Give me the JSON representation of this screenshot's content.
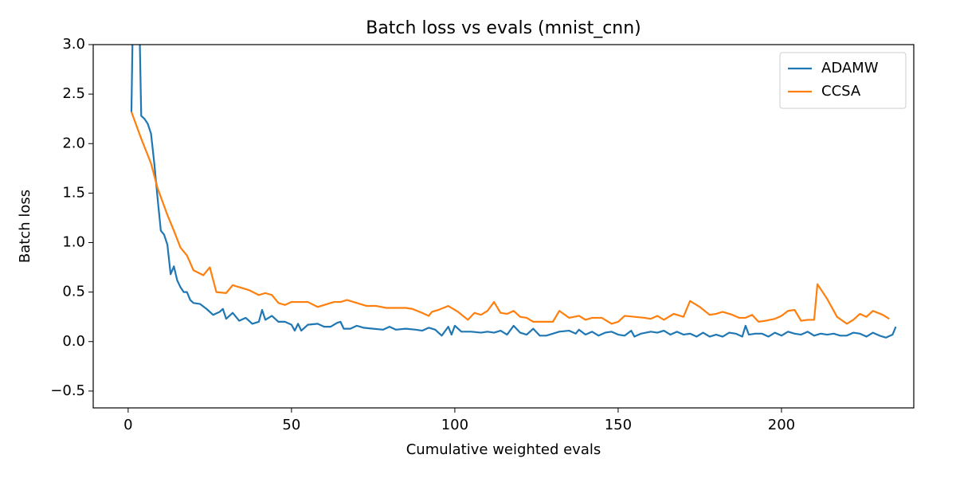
{
  "chart_data": {
    "type": "line",
    "title": "Batch loss vs evals (mnist_cnn)",
    "x_label": "Cumulative weighted evals",
    "y_label": "Batch loss",
    "xlim": [
      -10.7,
      240.5
    ],
    "ylim": [
      -0.67,
      3.0
    ],
    "xticks": [
      0,
      50,
      100,
      150,
      200
    ],
    "yticks": [
      {
        "value": -0.5,
        "label": "−0.5"
      },
      {
        "value": 0,
        "label": "0.0"
      },
      {
        "value": 0.5,
        "label": "0.5"
      },
      {
        "value": 1,
        "label": "1.0"
      },
      {
        "value": 1.5,
        "label": "1.5"
      },
      {
        "value": 2,
        "label": "2.0"
      },
      {
        "value": 2.5,
        "label": "2.5"
      },
      {
        "value": 3,
        "label": "3.0"
      }
    ],
    "grid": false,
    "legend": "upper right",
    "series": [
      {
        "name": "ADAMW",
        "color": "#1f77b4",
        "x": [
          1,
          2,
          3,
          4,
          5,
          6,
          7,
          8,
          9,
          10,
          11,
          12,
          13,
          14,
          15,
          16,
          17,
          18,
          19,
          20,
          22,
          24,
          26,
          28,
          29,
          30,
          32,
          34,
          36,
          38,
          40,
          41,
          42,
          44,
          46,
          48,
          50,
          51,
          52,
          53,
          55,
          58,
          60,
          62,
          64,
          65,
          66,
          68,
          70,
          72,
          75,
          78,
          80,
          82,
          85,
          88,
          90,
          92,
          94,
          96,
          98,
          99,
          100,
          102,
          105,
          108,
          110,
          112,
          114,
          116,
          118,
          120,
          122,
          124,
          126,
          128,
          130,
          132,
          135,
          137,
          138,
          140,
          142,
          144,
          146,
          148,
          150,
          152,
          154,
          155,
          157,
          160,
          162,
          164,
          166,
          168,
          170,
          172,
          174,
          176,
          178,
          180,
          182,
          184,
          186,
          188,
          189,
          190,
          192,
          194,
          196,
          198,
          200,
          202,
          204,
          206,
          208,
          210,
          212,
          214,
          216,
          218,
          220,
          222,
          224,
          226,
          228,
          230,
          232,
          234,
          235
        ],
        "values": [
          2.32,
          4.5,
          4.0,
          2.28,
          2.25,
          2.2,
          2.1,
          1.8,
          1.45,
          1.12,
          1.08,
          0.98,
          0.68,
          0.76,
          0.62,
          0.55,
          0.5,
          0.5,
          0.42,
          0.39,
          0.38,
          0.33,
          0.27,
          0.3,
          0.33,
          0.23,
          0.29,
          0.21,
          0.24,
          0.18,
          0.2,
          0.32,
          0.22,
          0.26,
          0.2,
          0.2,
          0.17,
          0.11,
          0.18,
          0.11,
          0.17,
          0.18,
          0.15,
          0.15,
          0.19,
          0.2,
          0.13,
          0.13,
          0.16,
          0.14,
          0.13,
          0.12,
          0.15,
          0.12,
          0.13,
          0.12,
          0.11,
          0.14,
          0.12,
          0.06,
          0.15,
          0.07,
          0.16,
          0.1,
          0.1,
          0.09,
          0.1,
          0.09,
          0.11,
          0.07,
          0.16,
          0.09,
          0.07,
          0.13,
          0.06,
          0.06,
          0.08,
          0.1,
          0.11,
          0.08,
          0.12,
          0.07,
          0.1,
          0.06,
          0.09,
          0.1,
          0.07,
          0.06,
          0.11,
          0.05,
          0.08,
          0.1,
          0.09,
          0.11,
          0.07,
          0.1,
          0.07,
          0.08,
          0.05,
          0.09,
          0.05,
          0.07,
          0.05,
          0.09,
          0.08,
          0.05,
          0.16,
          0.07,
          0.08,
          0.08,
          0.05,
          0.09,
          0.06,
          0.1,
          0.08,
          0.07,
          0.1,
          0.06,
          0.08,
          0.07,
          0.08,
          0.06,
          0.06,
          0.09,
          0.08,
          0.05,
          0.09,
          0.06,
          0.04,
          0.07,
          0.15
        ]
      },
      {
        "name": "CCSA",
        "color": "#ff7f0e",
        "x": [
          1,
          4,
          7,
          9,
          12,
          14,
          16,
          18,
          20,
          23,
          25,
          27,
          30,
          32,
          35,
          37,
          40,
          42,
          44,
          46,
          48,
          50,
          55,
          58,
          60,
          63,
          65,
          67,
          70,
          73,
          76,
          79,
          85,
          87,
          90,
          92,
          93,
          95,
          98,
          101,
          104,
          106,
          108,
          110,
          112,
          114,
          116,
          118,
          120,
          122,
          124,
          126,
          128,
          130,
          132,
          135,
          138,
          140,
          142,
          145,
          148,
          150,
          152,
          155,
          158,
          160,
          162,
          164,
          167,
          170,
          172,
          175,
          178,
          180,
          182,
          185,
          187,
          189,
          191,
          193,
          195,
          198,
          200,
          202,
          204,
          206,
          208,
          210,
          211,
          214,
          217,
          220,
          222,
          224,
          226,
          228,
          231,
          233
        ],
        "values": [
          2.32,
          2.05,
          1.8,
          1.55,
          1.28,
          1.12,
          0.95,
          0.87,
          0.72,
          0.67,
          0.75,
          0.5,
          0.49,
          0.57,
          0.54,
          0.52,
          0.47,
          0.49,
          0.47,
          0.39,
          0.37,
          0.4,
          0.4,
          0.35,
          0.37,
          0.4,
          0.4,
          0.42,
          0.39,
          0.36,
          0.36,
          0.34,
          0.34,
          0.33,
          0.29,
          0.26,
          0.3,
          0.32,
          0.36,
          0.3,
          0.22,
          0.29,
          0.27,
          0.31,
          0.4,
          0.29,
          0.28,
          0.31,
          0.25,
          0.24,
          0.2,
          0.2,
          0.2,
          0.2,
          0.31,
          0.24,
          0.26,
          0.22,
          0.24,
          0.24,
          0.18,
          0.2,
          0.26,
          0.25,
          0.24,
          0.23,
          0.26,
          0.22,
          0.28,
          0.25,
          0.41,
          0.35,
          0.27,
          0.28,
          0.3,
          0.27,
          0.24,
          0.24,
          0.27,
          0.2,
          0.21,
          0.23,
          0.26,
          0.31,
          0.32,
          0.21,
          0.22,
          0.22,
          0.58,
          0.43,
          0.25,
          0.18,
          0.22,
          0.28,
          0.25,
          0.31,
          0.27,
          0.23
        ]
      }
    ]
  }
}
